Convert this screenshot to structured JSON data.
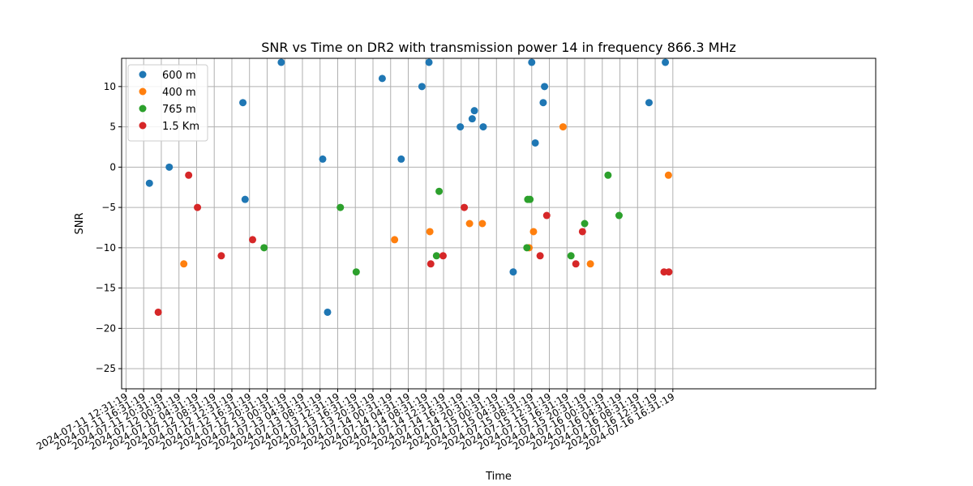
{
  "chart_data": {
    "type": "scatter",
    "title": "SNR vs Time on DR2 with transmission power 14 in frequency 866.3 MHz",
    "xlabel": "Time",
    "ylabel": "SNR",
    "x_unit": "hours",
    "xlim": [
      -1,
      170
    ],
    "ylim": [
      -27.5,
      13.5
    ],
    "grid": true,
    "legend_position": "upper-left",
    "x_ticks": [
      {
        "value": 0,
        "label": "2024-07-11 12:31:19"
      },
      {
        "value": 4,
        "label": "2024-07-11 16:31:19"
      },
      {
        "value": 8,
        "label": "2024-07-11 20:31:19"
      },
      {
        "value": 12,
        "label": "2024-07-12 00:31:19"
      },
      {
        "value": 16,
        "label": "2024-07-12 04:31:19"
      },
      {
        "value": 20,
        "label": "2024-07-12 08:31:19"
      },
      {
        "value": 24,
        "label": "2024-07-12 12:31:19"
      },
      {
        "value": 28,
        "label": "2024-07-12 16:31:19"
      },
      {
        "value": 32,
        "label": "2024-07-12 20:31:19"
      },
      {
        "value": 36,
        "label": "2024-07-13 00:31:19"
      },
      {
        "value": 40,
        "label": "2024-07-13 04:31:19"
      },
      {
        "value": 44,
        "label": "2024-07-13 08:31:19"
      },
      {
        "value": 48,
        "label": "2024-07-13 12:31:19"
      },
      {
        "value": 52,
        "label": "2024-07-13 16:31:19"
      },
      {
        "value": 56,
        "label": "2024-07-13 20:31:19"
      },
      {
        "value": 60,
        "label": "2024-07-14 00:31:19"
      },
      {
        "value": 64,
        "label": "2024-07-14 04:31:19"
      },
      {
        "value": 68,
        "label": "2024-07-14 08:31:19"
      },
      {
        "value": 72,
        "label": "2024-07-14 12:31:19"
      },
      {
        "value": 76,
        "label": "2024-07-14 16:31:19"
      },
      {
        "value": 80,
        "label": "2024-07-14 20:31:19"
      },
      {
        "value": 84,
        "label": "2024-07-15 00:31:19"
      },
      {
        "value": 88,
        "label": "2024-07-15 04:31:19"
      },
      {
        "value": 92,
        "label": "2024-07-15 08:31:19"
      },
      {
        "value": 96,
        "label": "2024-07-15 12:31:19"
      },
      {
        "value": 100,
        "label": "2024-07-15 16:31:19"
      },
      {
        "value": 104,
        "label": "2024-07-15 20:31:19"
      },
      {
        "value": 108,
        "label": "2024-07-16 00:31:19"
      },
      {
        "value": 112,
        "label": "2024-07-16 04:31:19"
      },
      {
        "value": 116,
        "label": "2024-07-16 08:31:19"
      },
      {
        "value": 120,
        "label": "2024-07-16 12:31:19"
      },
      {
        "value": 124,
        "label": "2024-07-16 16:31:19"
      }
    ],
    "y_ticks": [
      10,
      5,
      0,
      -5,
      -10,
      -15,
      -20,
      -25
    ],
    "series": [
      {
        "name": "600 m",
        "color": "#1f77b4",
        "points": [
          {
            "x": 5.3,
            "y": -2
          },
          {
            "x": 9.8,
            "y": 0
          },
          {
            "x": 26.5,
            "y": 8
          },
          {
            "x": 27.0,
            "y": -4
          },
          {
            "x": 35.2,
            "y": 13
          },
          {
            "x": 44.6,
            "y": 1
          },
          {
            "x": 45.7,
            "y": -18
          },
          {
            "x": 58.1,
            "y": 11
          },
          {
            "x": 62.4,
            "y": 1
          },
          {
            "x": 67.1,
            "y": 10
          },
          {
            "x": 68.7,
            "y": 13
          },
          {
            "x": 75.8,
            "y": 5
          },
          {
            "x": 78.5,
            "y": 6
          },
          {
            "x": 79.0,
            "y": 7
          },
          {
            "x": 81.0,
            "y": 5
          },
          {
            "x": 87.8,
            "y": -13
          },
          {
            "x": 92.0,
            "y": 13
          },
          {
            "x": 92.8,
            "y": 3
          },
          {
            "x": 94.9,
            "y": 10
          },
          {
            "x": 94.6,
            "y": 8
          },
          {
            "x": 118.6,
            "y": 8
          },
          {
            "x": 122.3,
            "y": 13
          }
        ]
      },
      {
        "name": "400 m",
        "color": "#ff7f0e",
        "points": [
          {
            "x": 13.1,
            "y": -12
          },
          {
            "x": 60.9,
            "y": -9
          },
          {
            "x": 68.9,
            "y": -8
          },
          {
            "x": 77.9,
            "y": -7
          },
          {
            "x": 80.8,
            "y": -7
          },
          {
            "x": 91.4,
            "y": -10
          },
          {
            "x": 92.4,
            "y": -8
          },
          {
            "x": 99.1,
            "y": 5
          },
          {
            "x": 105.3,
            "y": -12
          },
          {
            "x": 123.0,
            "y": -1
          }
        ]
      },
      {
        "name": "765 m",
        "color": "#2ca02c",
        "points": [
          {
            "x": 31.3,
            "y": -10
          },
          {
            "x": 48.6,
            "y": -5
          },
          {
            "x": 52.2,
            "y": -13
          },
          {
            "x": 70.4,
            "y": -11
          },
          {
            "x": 71.0,
            "y": -3
          },
          {
            "x": 90.9,
            "y": -10
          },
          {
            "x": 91.1,
            "y": -4
          },
          {
            "x": 91.6,
            "y": -4
          },
          {
            "x": 100.9,
            "y": -11
          },
          {
            "x": 104.0,
            "y": -7
          },
          {
            "x": 109.3,
            "y": -1
          },
          {
            "x": 111.8,
            "y": -6
          }
        ]
      },
      {
        "name": "1.5 Km",
        "color": "#d62728",
        "points": [
          {
            "x": 7.3,
            "y": -18
          },
          {
            "x": 14.2,
            "y": -1
          },
          {
            "x": 16.2,
            "y": -5
          },
          {
            "x": 21.6,
            "y": -11
          },
          {
            "x": 28.7,
            "y": -9
          },
          {
            "x": 69.1,
            "y": -12
          },
          {
            "x": 71.9,
            "y": -11
          },
          {
            "x": 76.7,
            "y": -5
          },
          {
            "x": 93.9,
            "y": -11
          },
          {
            "x": 95.4,
            "y": -6
          },
          {
            "x": 102.0,
            "y": -12
          },
          {
            "x": 103.5,
            "y": -8
          },
          {
            "x": 122.0,
            "y": -13
          },
          {
            "x": 123.1,
            "y": -13
          }
        ]
      }
    ]
  }
}
